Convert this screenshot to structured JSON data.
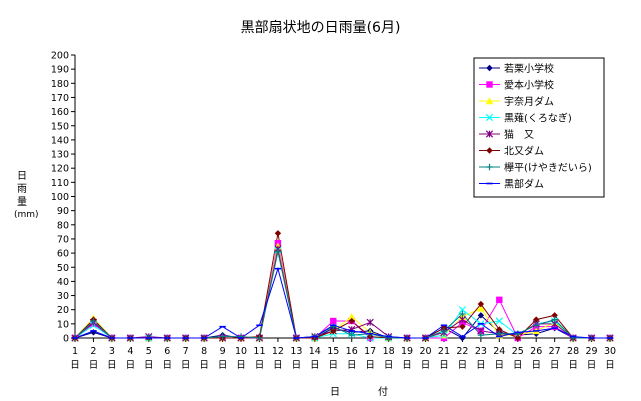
{
  "chart_data": {
    "type": "line",
    "title": "黒部扇状地の日雨量(6月)",
    "xlabel": "日　付",
    "ylabel_chars": [
      "日",
      "雨",
      "量",
      "(mm)"
    ],
    "ylim": [
      0,
      200
    ],
    "ytick_step": 10,
    "x": [
      1,
      2,
      3,
      4,
      5,
      6,
      7,
      8,
      9,
      10,
      11,
      12,
      13,
      14,
      15,
      16,
      17,
      18,
      19,
      20,
      21,
      22,
      23,
      24,
      25,
      26,
      27,
      28,
      29,
      30
    ],
    "tick_suffix": "日",
    "grid": false,
    "legend_position": "right",
    "series": [
      {
        "name": "若栗小学校",
        "color": "#000080",
        "marker": "diamond",
        "values": [
          0,
          4,
          0,
          0,
          0,
          0,
          0,
          0,
          2,
          0,
          0,
          65,
          0,
          0,
          7,
          4,
          5,
          0,
          0,
          0,
          7,
          0,
          16,
          4,
          2,
          3,
          7,
          0,
          0,
          0
        ]
      },
      {
        "name": "愛本小学校",
        "color": "#ff00ff",
        "marker": "square",
        "values": [
          0,
          10,
          0,
          0,
          0,
          0,
          0,
          0,
          0,
          0,
          0,
          67,
          0,
          0,
          12,
          12,
          0,
          0,
          0,
          0,
          0,
          11,
          5,
          27,
          0,
          8,
          8,
          0,
          0,
          0
        ]
      },
      {
        "name": "宇奈月ダム",
        "color": "#ffff00",
        "marker": "triangle",
        "values": [
          0,
          14,
          0,
          0,
          0,
          0,
          0,
          0,
          0,
          0,
          0,
          65,
          0,
          0,
          5,
          15,
          4,
          0,
          0,
          0,
          2,
          15,
          21,
          2,
          2,
          5,
          11,
          0,
          0,
          0
        ]
      },
      {
        "name": "黒薙(くろなぎ)",
        "color": "#00ffff",
        "marker": "x",
        "values": [
          0,
          9,
          0,
          0,
          0,
          0,
          0,
          0,
          0,
          0,
          0,
          62,
          0,
          0,
          3,
          3,
          0,
          0,
          0,
          0,
          2,
          20,
          10,
          12,
          2,
          10,
          12,
          0,
          0,
          0
        ]
      },
      {
        "name": "猫　又",
        "color": "#800080",
        "marker": "star",
        "values": [
          0,
          11,
          0,
          0,
          1,
          0,
          0,
          0,
          0,
          0,
          0,
          63,
          0,
          1,
          5,
          6,
          11,
          1,
          0,
          0,
          4,
          13,
          5,
          3,
          2,
          10,
          10,
          0,
          0,
          0
        ]
      },
      {
        "name": "北又ダム",
        "color": "#800000",
        "marker": "circle",
        "values": [
          0,
          13,
          0,
          0,
          0,
          0,
          0,
          0,
          0,
          0,
          1,
          74,
          0,
          0,
          5,
          12,
          1,
          0,
          0,
          0,
          7,
          8,
          24,
          6,
          0,
          13,
          16,
          0,
          0,
          0
        ]
      },
      {
        "name": "欅平(けやきだいら)",
        "color": "#008080",
        "marker": "plus",
        "values": [
          0,
          12,
          0,
          0,
          0,
          0,
          0,
          0,
          1,
          1,
          0,
          61,
          0,
          1,
          8,
          2,
          3,
          0,
          0,
          0,
          5,
          17,
          2,
          3,
          3,
          9,
          13,
          0,
          0,
          0
        ]
      },
      {
        "name": "黒部ダム",
        "color": "#0000ff",
        "marker": "dash",
        "values": [
          0,
          5,
          0,
          0,
          0,
          0,
          0,
          0,
          8,
          0,
          9,
          49,
          0,
          1,
          9,
          5,
          3,
          1,
          0,
          0,
          9,
          1,
          10,
          1,
          4,
          5,
          7,
          1,
          0,
          0
        ]
      }
    ]
  }
}
